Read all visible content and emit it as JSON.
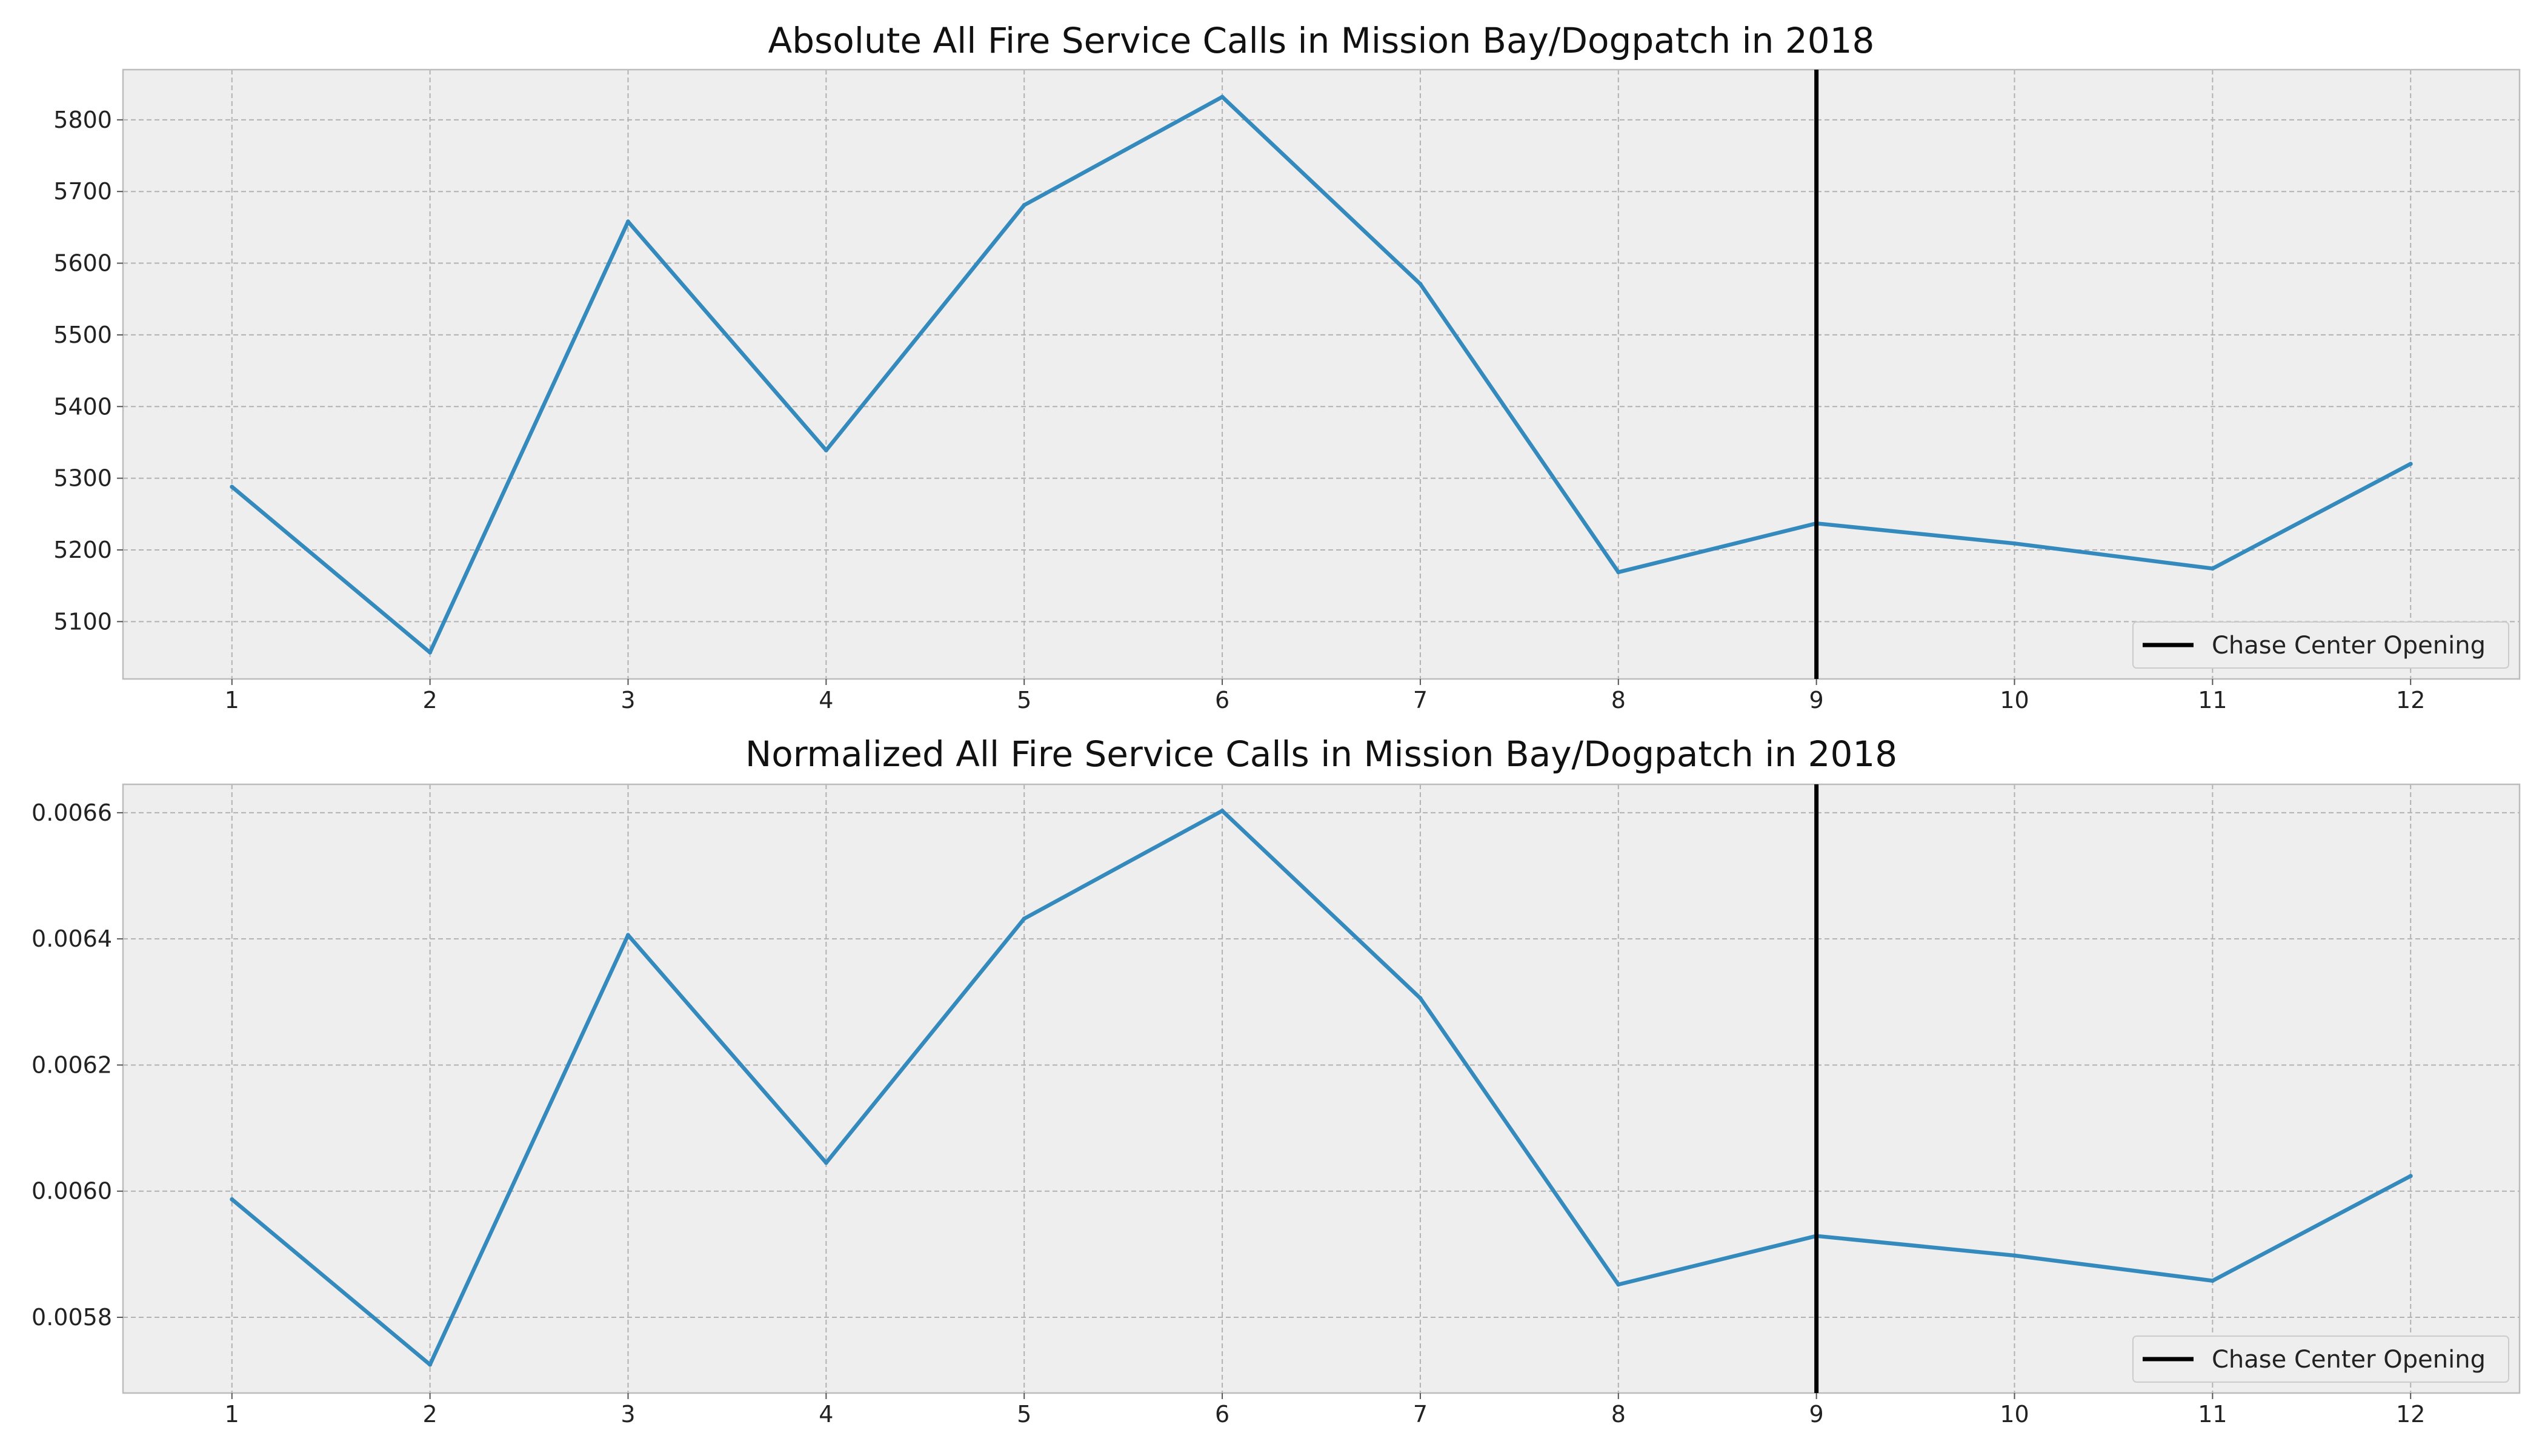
{
  "colors": {
    "series_line": "#348abd",
    "marker_line": "#000000",
    "plot_bg": "#eeeeee",
    "grid": "#b2b2b2",
    "spine": "#bcbcbc"
  },
  "chart_data": [
    {
      "type": "line",
      "title": "Absolute All Fire Service Calls in Mission Bay/Dogpatch in 2018",
      "xlabel": "",
      "ylabel": "",
      "x": [
        1,
        2,
        3,
        4,
        5,
        6,
        7,
        8,
        9,
        10,
        11,
        12
      ],
      "x_tick_labels": [
        "1",
        "2",
        "3",
        "4",
        "5",
        "6",
        "7",
        "8",
        "9",
        "10",
        "11",
        "12"
      ],
      "xlim": [
        0.45,
        12.55
      ],
      "ylim": [
        5020,
        5870
      ],
      "y_ticks": [
        5100,
        5200,
        5300,
        5400,
        5500,
        5600,
        5700,
        5800
      ],
      "y_tick_labels": [
        "5100",
        "5200",
        "5300",
        "5400",
        "5500",
        "5600",
        "5700",
        "5800"
      ],
      "series": [
        {
          "values": [
            5288,
            5057,
            5658,
            5339,
            5681,
            5832,
            5571,
            5169,
            5237,
            5209,
            5174,
            5320
          ]
        }
      ],
      "vline": {
        "x": 9,
        "label": "Chase Center Opening"
      },
      "grid": true,
      "legend": {
        "position": "lower-right",
        "entries": [
          "Chase Center Opening"
        ]
      }
    },
    {
      "type": "line",
      "title": "Normalized All Fire Service Calls in Mission Bay/Dogpatch in 2018",
      "xlabel": "",
      "ylabel": "",
      "x": [
        1,
        2,
        3,
        4,
        5,
        6,
        7,
        8,
        9,
        10,
        11,
        12
      ],
      "x_tick_labels": [
        "1",
        "2",
        "3",
        "4",
        "5",
        "6",
        "7",
        "8",
        "9",
        "10",
        "11",
        "12"
      ],
      "xlim": [
        0.45,
        12.55
      ],
      "ylim": [
        0.00568,
        0.006645
      ],
      "y_ticks": [
        0.0058,
        0.006,
        0.0062,
        0.0064,
        0.0066
      ],
      "y_tick_labels": [
        "0.0058",
        "0.0060",
        "0.0062",
        "0.0064",
        "0.0066"
      ],
      "series": [
        {
          "values": [
            0.005987,
            0.005725,
            0.006406,
            0.006045,
            0.006432,
            0.006603,
            0.006306,
            0.005852,
            0.005929,
            0.005898,
            0.005858,
            0.006024
          ]
        }
      ],
      "vline": {
        "x": 9,
        "label": "Chase Center Opening"
      },
      "grid": true,
      "legend": {
        "position": "lower-right",
        "entries": [
          "Chase Center Opening"
        ]
      }
    }
  ]
}
